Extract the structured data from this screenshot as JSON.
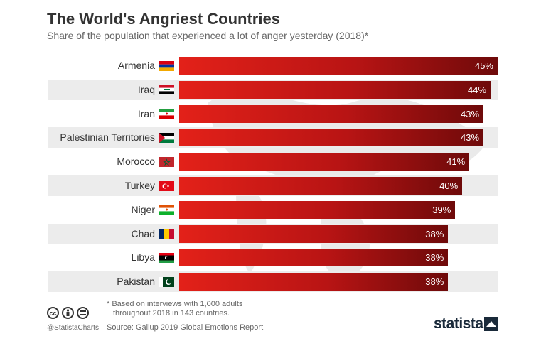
{
  "header": {
    "title": "The World's Angriest Countries",
    "subtitle": "Share of the population that experienced a lot of anger yesterday (2018)*"
  },
  "chart_data": {
    "type": "bar",
    "orientation": "horizontal",
    "title": "The World's Angriest Countries",
    "subtitle": "Share of the population that experienced a lot of anger yesterday (2018)*",
    "categories": [
      "Armenia",
      "Iraq",
      "Iran",
      "Palestinian Territories",
      "Morocco",
      "Turkey",
      "Niger",
      "Chad",
      "Libya",
      "Pakistan"
    ],
    "values": [
      45,
      44,
      43,
      43,
      41,
      40,
      39,
      38,
      38,
      38
    ],
    "value_labels": [
      "45%",
      "44%",
      "43%",
      "43%",
      "41%",
      "40%",
      "39%",
      "38%",
      "38%",
      "38%"
    ],
    "unit": "%",
    "bar_color": "#c8161d",
    "grid": false,
    "legend": "none"
  },
  "footer": {
    "note_line1": "* Based on interviews with 1,000 adults",
    "note_line2": "throughout 2018 in 143 countries.",
    "source": "Source: Gallup 2019 Global Emotions Report",
    "handle": "@StatistaCharts",
    "brand": "statista",
    "license_icons": [
      "cc-icon",
      "by-icon",
      "nd-icon"
    ]
  }
}
